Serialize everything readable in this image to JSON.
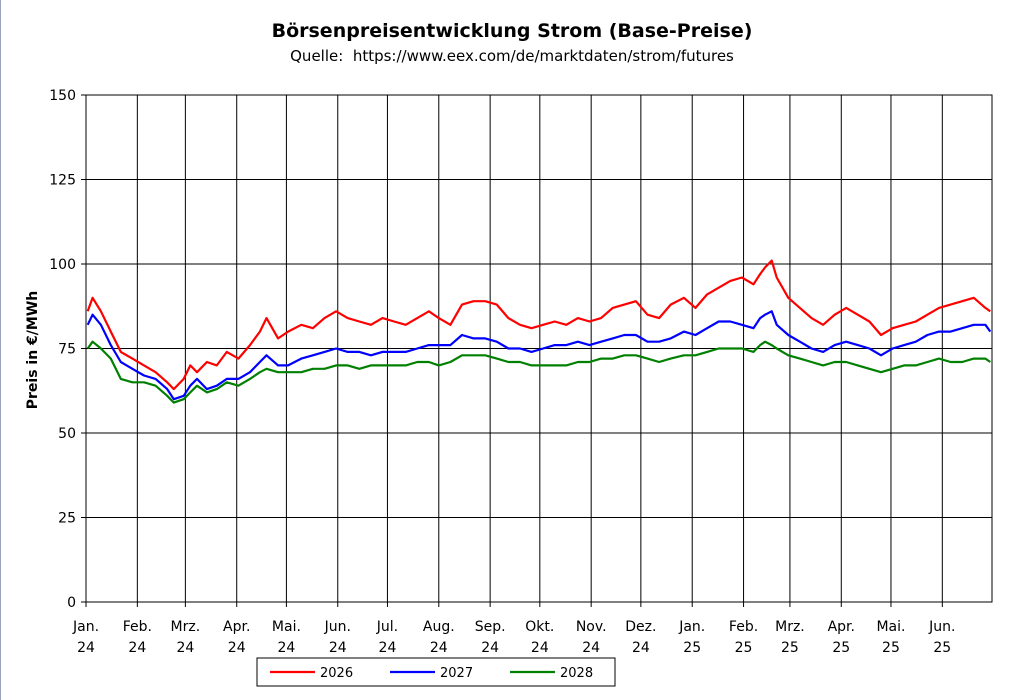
{
  "chart_data": {
    "type": "line",
    "title": "Börsenpreisentwicklung Strom (Base-Preise)",
    "subtitle": "Quelle:  https://www.eex.com/de/marktdaten/strom/futures",
    "ylabel": "Preis in €/MWh",
    "xlabel": "",
    "ylim": [
      0,
      150
    ],
    "yticks": [
      0,
      25,
      50,
      75,
      100,
      125,
      150
    ],
    "grid": true,
    "legend_position": "bottom",
    "x_months": [
      "Jan. 24",
      "Feb. 24",
      "Mrz. 24",
      "Apr. 24",
      "Mai. 24",
      "Jun. 24",
      "Jul. 24",
      "Aug. 24",
      "Sep. 24",
      "Okt. 24",
      "Nov. 24",
      "Dez. 24",
      "Jan. 25",
      "Feb. 25",
      "Mrz. 25",
      "Apr. 25",
      "Mai. 25",
      "Jun. 25"
    ],
    "tick_labels": [
      {
        "month": "Jan.",
        "year": "24"
      },
      {
        "month": "Feb.",
        "year": "24"
      },
      {
        "month": "Mrz.",
        "year": "24"
      },
      {
        "month": "Apr.",
        "year": "24"
      },
      {
        "month": "Mai.",
        "year": "24"
      },
      {
        "month": "Jun.",
        "year": "24"
      },
      {
        "month": "Jul.",
        "year": "24"
      },
      {
        "month": "Aug.",
        "year": "24"
      },
      {
        "month": "Sep.",
        "year": "24"
      },
      {
        "month": "Okt.",
        "year": "24"
      },
      {
        "month": "Nov.",
        "year": "24"
      },
      {
        "month": "Dez.",
        "year": "24"
      },
      {
        "month": "Jan.",
        "year": "25"
      },
      {
        "month": "Feb.",
        "year": "25"
      },
      {
        "month": "Mrz.",
        "year": "25"
      },
      {
        "month": "Apr.",
        "year": "25"
      },
      {
        "month": "Mai.",
        "year": "25"
      },
      {
        "month": "Jun.",
        "year": "25"
      }
    ],
    "series": [
      {
        "name": "2026",
        "color": "#ff0000",
        "x": [
          "2024-01-02",
          "2024-01-05",
          "2024-01-10",
          "2024-01-16",
          "2024-01-22",
          "2024-01-29",
          "2024-02-05",
          "2024-02-12",
          "2024-02-19",
          "2024-02-23",
          "2024-02-29",
          "2024-03-04",
          "2024-03-08",
          "2024-03-14",
          "2024-03-20",
          "2024-03-26",
          "2024-04-02",
          "2024-04-09",
          "2024-04-15",
          "2024-04-19",
          "2024-04-26",
          "2024-05-02",
          "2024-05-10",
          "2024-05-17",
          "2024-05-24",
          "2024-05-31",
          "2024-06-07",
          "2024-06-14",
          "2024-06-21",
          "2024-06-28",
          "2024-07-05",
          "2024-07-12",
          "2024-07-19",
          "2024-07-26",
          "2024-08-01",
          "2024-08-08",
          "2024-08-15",
          "2024-08-22",
          "2024-08-29",
          "2024-09-05",
          "2024-09-12",
          "2024-09-19",
          "2024-09-26",
          "2024-10-03",
          "2024-10-10",
          "2024-10-17",
          "2024-10-24",
          "2024-10-31",
          "2024-11-07",
          "2024-11-14",
          "2024-11-21",
          "2024-11-28",
          "2024-12-05",
          "2024-12-12",
          "2024-12-19",
          "2024-12-27",
          "2025-01-03",
          "2025-01-10",
          "2025-01-17",
          "2025-01-24",
          "2025-01-31",
          "2025-02-07",
          "2025-02-11",
          "2025-02-14",
          "2025-02-18",
          "2025-02-21",
          "2025-02-28",
          "2025-03-07",
          "2025-03-14",
          "2025-03-21",
          "2025-03-28",
          "2025-04-04",
          "2025-04-11",
          "2025-04-18",
          "2025-04-25",
          "2025-05-02",
          "2025-05-09",
          "2025-05-16",
          "2025-05-23",
          "2025-05-30",
          "2025-06-06",
          "2025-06-13",
          "2025-06-20",
          "2025-06-27",
          "2025-06-30"
        ],
        "values": [
          86,
          90,
          86,
          80,
          74,
          72,
          70,
          68,
          65,
          63,
          66,
          70,
          68,
          71,
          70,
          74,
          72,
          76,
          80,
          84,
          78,
          80,
          82,
          81,
          84,
          86,
          84,
          83,
          82,
          84,
          83,
          82,
          84,
          86,
          84,
          82,
          88,
          89,
          89,
          88,
          84,
          82,
          81,
          82,
          83,
          82,
          84,
          83,
          84,
          87,
          88,
          89,
          85,
          84,
          88,
          90,
          87,
          91,
          93,
          95,
          96,
          94,
          97,
          99,
          101,
          96,
          90,
          87,
          84,
          82,
          85,
          87,
          85,
          83,
          79,
          81,
          82,
          83,
          85,
          87,
          88,
          89,
          90,
          87,
          86
        ]
      },
      {
        "name": "2027",
        "color": "#0000ff",
        "x": [
          "2024-01-02",
          "2024-01-05",
          "2024-01-10",
          "2024-01-16",
          "2024-01-22",
          "2024-01-29",
          "2024-02-05",
          "2024-02-12",
          "2024-02-19",
          "2024-02-23",
          "2024-02-29",
          "2024-03-04",
          "2024-03-08",
          "2024-03-14",
          "2024-03-20",
          "2024-03-26",
          "2024-04-02",
          "2024-04-09",
          "2024-04-15",
          "2024-04-19",
          "2024-04-26",
          "2024-05-02",
          "2024-05-10",
          "2024-05-17",
          "2024-05-24",
          "2024-05-31",
          "2024-06-07",
          "2024-06-14",
          "2024-06-21",
          "2024-06-28",
          "2024-07-05",
          "2024-07-12",
          "2024-07-19",
          "2024-07-26",
          "2024-08-01",
          "2024-08-08",
          "2024-08-15",
          "2024-08-22",
          "2024-08-29",
          "2024-09-05",
          "2024-09-12",
          "2024-09-19",
          "2024-09-26",
          "2024-10-03",
          "2024-10-10",
          "2024-10-17",
          "2024-10-24",
          "2024-10-31",
          "2024-11-07",
          "2024-11-14",
          "2024-11-21",
          "2024-11-28",
          "2024-12-05",
          "2024-12-12",
          "2024-12-19",
          "2024-12-27",
          "2025-01-03",
          "2025-01-10",
          "2025-01-17",
          "2025-01-24",
          "2025-01-31",
          "2025-02-07",
          "2025-02-11",
          "2025-02-14",
          "2025-02-18",
          "2025-02-21",
          "2025-02-28",
          "2025-03-07",
          "2025-03-14",
          "2025-03-21",
          "2025-03-28",
          "2025-04-04",
          "2025-04-11",
          "2025-04-18",
          "2025-04-25",
          "2025-05-02",
          "2025-05-09",
          "2025-05-16",
          "2025-05-23",
          "2025-05-30",
          "2025-06-06",
          "2025-06-13",
          "2025-06-20",
          "2025-06-27",
          "2025-06-30"
        ],
        "values": [
          82,
          85,
          82,
          76,
          71,
          69,
          67,
          66,
          63,
          60,
          61,
          64,
          66,
          63,
          64,
          66,
          66,
          68,
          71,
          73,
          70,
          70,
          72,
          73,
          74,
          75,
          74,
          74,
          73,
          74,
          74,
          74,
          75,
          76,
          76,
          76,
          79,
          78,
          78,
          77,
          75,
          75,
          74,
          75,
          76,
          76,
          77,
          76,
          77,
          78,
          79,
          79,
          77,
          77,
          78,
          80,
          79,
          81,
          83,
          83,
          82,
          81,
          84,
          85,
          86,
          82,
          79,
          77,
          75,
          74,
          76,
          77,
          76,
          75,
          73,
          75,
          76,
          77,
          79,
          80,
          80,
          81,
          82,
          82,
          80
        ]
      },
      {
        "name": "2028",
        "color": "#008000",
        "x": [
          "2024-01-02",
          "2024-01-05",
          "2024-01-10",
          "2024-01-16",
          "2024-01-22",
          "2024-01-29",
          "2024-02-05",
          "2024-02-12",
          "2024-02-19",
          "2024-02-23",
          "2024-02-29",
          "2024-03-04",
          "2024-03-08",
          "2024-03-14",
          "2024-03-20",
          "2024-03-26",
          "2024-04-02",
          "2024-04-09",
          "2024-04-15",
          "2024-04-19",
          "2024-04-26",
          "2024-05-02",
          "2024-05-10",
          "2024-05-17",
          "2024-05-24",
          "2024-05-31",
          "2024-06-07",
          "2024-06-14",
          "2024-06-21",
          "2024-06-28",
          "2024-07-05",
          "2024-07-12",
          "2024-07-19",
          "2024-07-26",
          "2024-08-01",
          "2024-08-08",
          "2024-08-15",
          "2024-08-22",
          "2024-08-29",
          "2024-09-05",
          "2024-09-12",
          "2024-09-19",
          "2024-09-26",
          "2024-10-03",
          "2024-10-10",
          "2024-10-17",
          "2024-10-24",
          "2024-10-31",
          "2024-11-07",
          "2024-11-14",
          "2024-11-21",
          "2024-11-28",
          "2024-12-05",
          "2024-12-12",
          "2024-12-19",
          "2024-12-27",
          "2025-01-03",
          "2025-01-10",
          "2025-01-17",
          "2025-01-24",
          "2025-01-31",
          "2025-02-07",
          "2025-02-11",
          "2025-02-14",
          "2025-02-18",
          "2025-02-21",
          "2025-02-28",
          "2025-03-07",
          "2025-03-14",
          "2025-03-21",
          "2025-03-28",
          "2025-04-04",
          "2025-04-11",
          "2025-04-18",
          "2025-04-25",
          "2025-05-02",
          "2025-05-09",
          "2025-05-16",
          "2025-05-23",
          "2025-05-30",
          "2025-06-06",
          "2025-06-13",
          "2025-06-20",
          "2025-06-27",
          "2025-06-30"
        ],
        "values": [
          75,
          77,
          75,
          72,
          66,
          65,
          65,
          64,
          61,
          59,
          60,
          62,
          64,
          62,
          63,
          65,
          64,
          66,
          68,
          69,
          68,
          68,
          68,
          69,
          69,
          70,
          70,
          69,
          70,
          70,
          70,
          70,
          71,
          71,
          70,
          71,
          73,
          73,
          73,
          72,
          71,
          71,
          70,
          70,
          70,
          70,
          71,
          71,
          72,
          72,
          73,
          73,
          72,
          71,
          72,
          73,
          73,
          74,
          75,
          75,
          75,
          74,
          76,
          77,
          76,
          75,
          73,
          72,
          71,
          70,
          71,
          71,
          70,
          69,
          68,
          69,
          70,
          70,
          71,
          72,
          71,
          71,
          72,
          72,
          71
        ]
      }
    ]
  }
}
